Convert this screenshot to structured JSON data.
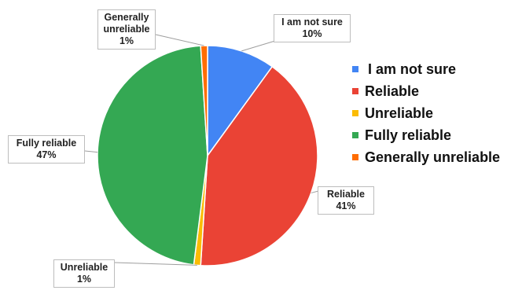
{
  "chart_data": {
    "type": "pie",
    "slices": [
      {
        "label": "I am not sure",
        "value": 10,
        "display": "10%",
        "color": "#4285f4"
      },
      {
        "label": "Reliable",
        "value": 41,
        "display": "41%",
        "color": "#ea4335"
      },
      {
        "label": "Unreliable",
        "value": 1,
        "display": "1%",
        "color": "#fbbc04"
      },
      {
        "label": "Fully reliable",
        "value": 47,
        "display": "47%",
        "color": "#34a853"
      },
      {
        "label": "Generally unreliable",
        "value": 1,
        "display": "1%",
        "color": "#ff6d01"
      }
    ],
    "callouts": [
      {
        "lines": [
          "I am not sure",
          "10%"
        ]
      },
      {
        "lines": [
          "Reliable",
          "41%"
        ]
      },
      {
        "lines": [
          "Unreliable",
          "1%"
        ]
      },
      {
        "lines": [
          "Fully reliable",
          "47%"
        ]
      },
      {
        "lines": [
          "Generally",
          "unreliable",
          "1%"
        ]
      }
    ],
    "legend": [
      {
        "label": "I am not sure",
        "color": "#4285f4"
      },
      {
        "label": "Reliable",
        "color": "#ea4335"
      },
      {
        "label": "Unreliable",
        "color": "#fbbc04"
      },
      {
        "label": "Fully reliable",
        "color": "#34a853"
      },
      {
        "label": "Generally unreliable",
        "color": "#ff6d01"
      }
    ],
    "legend_position": "right"
  }
}
